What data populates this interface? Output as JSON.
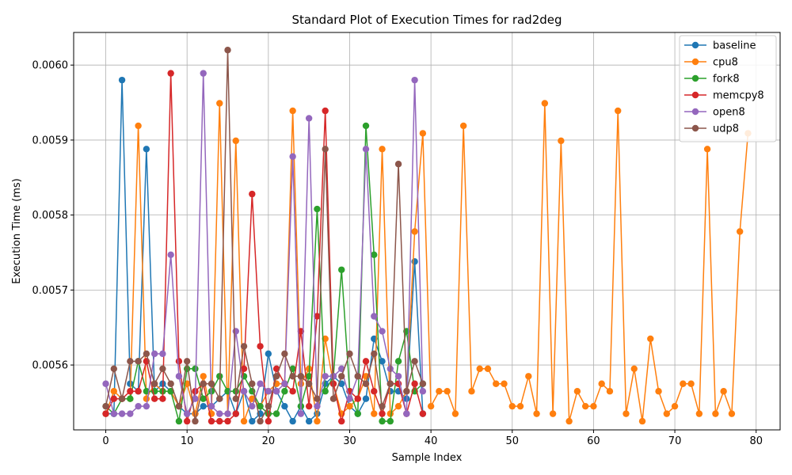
{
  "chart_data": {
    "type": "line",
    "title": "Standard Plot of Execution Times for rad2deg",
    "xlabel": "Sample Index",
    "ylabel": "Execution Time (ms)",
    "xlim": [
      -3.95,
      82.95
    ],
    "ylim": [
      0.0055135,
      0.0060435
    ],
    "xticks": [
      0,
      10,
      20,
      30,
      40,
      50,
      60,
      70,
      80
    ],
    "yticks": [
      0.0056,
      0.0057,
      0.0058,
      0.0059,
      0.006
    ],
    "ytick_labels": [
      "0.0056",
      "0.0057",
      "0.0058",
      "0.0059",
      "0.0060"
    ],
    "grid": true,
    "legend_position": "top-right",
    "series": [
      {
        "name": "baseline",
        "color": "#1f77b4",
        "values": [
          0.005535,
          0.005535,
          0.00598,
          0.005575,
          0.005565,
          0.005888,
          0.005565,
          0.005575,
          0.005565,
          0.005545,
          0.005535,
          0.005535,
          0.005545,
          0.005545,
          0.005555,
          0.005565,
          0.005535,
          0.005565,
          0.005525,
          0.005535,
          0.005615,
          0.005565,
          0.005545,
          0.005525,
          0.005545,
          0.005525,
          0.005535,
          0.005575,
          0.005585,
          0.005575,
          0.005545,
          0.005535,
          0.005555,
          0.005635,
          0.005605,
          0.005565,
          0.005565,
          0.005555,
          0.005738,
          0.005535
        ]
      },
      {
        "name": "cpu8",
        "color": "#ff7f0e",
        "values": [
          0.005535,
          0.005565,
          0.005555,
          0.005555,
          0.005919,
          0.005555,
          0.005575,
          0.005565,
          0.005565,
          0.005545,
          0.005575,
          0.005535,
          0.005585,
          0.005535,
          0.005949,
          0.005535,
          0.005899,
          0.005525,
          0.005555,
          0.005545,
          0.005565,
          0.005575,
          0.005575,
          0.005939,
          0.005575,
          0.005595,
          0.005525,
          0.005635,
          0.005575,
          0.005535,
          0.005545,
          0.005555,
          0.005585,
          0.005535,
          0.005888,
          0.005535,
          0.005545,
          0.005565,
          0.005778,
          0.005909,
          0.005545,
          0.005565,
          0.005565,
          0.005535,
          0.005919,
          0.005565,
          0.005595,
          0.005595,
          0.005575,
          0.005575,
          0.005545,
          0.005545,
          0.005585,
          0.005535,
          0.005949,
          0.005535,
          0.005899,
          0.005525,
          0.005565,
          0.005545,
          0.005545,
          0.005575,
          0.005565,
          0.005939,
          0.005535,
          0.005595,
          0.005525,
          0.005635,
          0.005565,
          0.005535,
          0.005545,
          0.005575,
          0.005575,
          0.005535,
          0.005888,
          0.005535,
          0.005565,
          0.005535,
          0.005778,
          0.005909
        ]
      },
      {
        "name": "fork8",
        "color": "#2ca02c",
        "values": [
          0.005545,
          0.005535,
          0.005555,
          0.005555,
          0.005605,
          0.005565,
          0.005565,
          0.005565,
          0.005565,
          0.005525,
          0.005595,
          0.005595,
          0.005555,
          0.005565,
          0.005585,
          0.005565,
          0.005565,
          0.005585,
          0.005565,
          0.005545,
          0.005535,
          0.005535,
          0.005565,
          0.005595,
          0.005545,
          0.005585,
          0.005808,
          0.005565,
          0.005585,
          0.005727,
          0.005565,
          0.005535,
          0.005919,
          0.005747,
          0.005525,
          0.005525,
          0.005605,
          0.005645,
          0.005565,
          0.005575
        ]
      },
      {
        "name": "memcpy8",
        "color": "#d62728",
        "values": [
          0.005535,
          0.005555,
          0.005555,
          0.005565,
          0.005565,
          0.005605,
          0.005555,
          0.005555,
          0.005989,
          0.005605,
          0.005525,
          0.005565,
          0.005575,
          0.005525,
          0.005525,
          0.005525,
          0.005535,
          0.005595,
          0.005828,
          0.005625,
          0.005525,
          0.005595,
          0.005575,
          0.005565,
          0.005645,
          0.005545,
          0.005665,
          0.005939,
          0.005575,
          0.005525,
          0.005565,
          0.005555,
          0.005605,
          0.005565,
          0.005535,
          0.005575,
          0.005575,
          0.005535,
          0.005575,
          0.005535
        ]
      },
      {
        "name": "open8",
        "color": "#9467bd",
        "values": [
          0.005575,
          0.005535,
          0.005535,
          0.005535,
          0.005545,
          0.005545,
          0.005615,
          0.005615,
          0.005747,
          0.005585,
          0.005535,
          0.005555,
          0.005989,
          0.005545,
          0.005535,
          0.005535,
          0.005645,
          0.005565,
          0.005545,
          0.005575,
          0.005565,
          0.005565,
          0.005575,
          0.005878,
          0.005535,
          0.005929,
          0.005545,
          0.005585,
          0.005585,
          0.005595,
          0.005555,
          0.005585,
          0.005888,
          0.005665,
          0.005645,
          0.005595,
          0.005585,
          0.005535,
          0.00598,
          0.005565
        ]
      },
      {
        "name": "udp8",
        "color": "#8c564b",
        "values": [
          0.005545,
          0.005595,
          0.005555,
          0.005605,
          0.005605,
          0.005615,
          0.005575,
          0.005595,
          0.005575,
          0.005545,
          0.005605,
          0.005525,
          0.005575,
          0.005575,
          0.005555,
          0.00602,
          0.005555,
          0.005625,
          0.005575,
          0.005525,
          0.005545,
          0.005585,
          0.005615,
          0.005585,
          0.005585,
          0.005575,
          0.005555,
          0.005888,
          0.005555,
          0.005585,
          0.005615,
          0.005585,
          0.005575,
          0.005615,
          0.005545,
          0.005575,
          0.005868,
          0.005565,
          0.005605,
          0.005575
        ]
      }
    ]
  }
}
